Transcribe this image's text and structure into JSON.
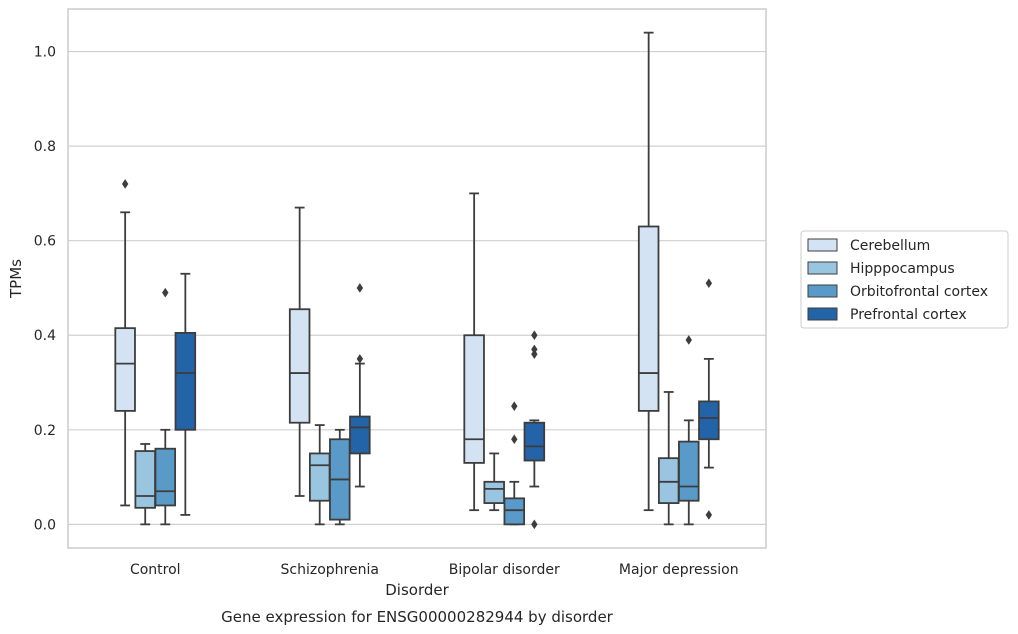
{
  "caption": "Gene expression for ENSG00000282944 by disorder",
  "chart_data": {
    "type": "boxplot",
    "xlabel": "Disorder",
    "ylabel": "TPMs",
    "ylim": [
      -0.05,
      1.09
    ],
    "yticks": [
      0.0,
      0.2,
      0.4,
      0.6,
      0.8,
      1.0
    ],
    "ytick_labels": [
      "0.0",
      "0.2",
      "0.4",
      "0.6",
      "0.8",
      "1.0"
    ],
    "grid": "horizontal",
    "legend_position": "right",
    "categories": [
      "Control",
      "Schizophrenia",
      "Bipolar disorder",
      "Major depression"
    ],
    "series": [
      {
        "name": "Cerebellum",
        "color": "#d3e3f3",
        "boxes": [
          {
            "whislo": 0.04,
            "q1": 0.24,
            "med": 0.34,
            "q3": 0.415,
            "whishi": 0.66,
            "fliers": [
              0.72
            ]
          },
          {
            "whislo": 0.06,
            "q1": 0.215,
            "med": 0.32,
            "q3": 0.455,
            "whishi": 0.67,
            "fliers": []
          },
          {
            "whislo": 0.03,
            "q1": 0.13,
            "med": 0.18,
            "q3": 0.4,
            "whishi": 0.7,
            "fliers": []
          },
          {
            "whislo": 0.03,
            "q1": 0.24,
            "med": 0.32,
            "q3": 0.63,
            "whishi": 1.04,
            "fliers": []
          }
        ]
      },
      {
        "name": "Hipppocampus",
        "color": "#9ac5e0",
        "boxes": [
          {
            "whislo": 0.0,
            "q1": 0.035,
            "med": 0.06,
            "q3": 0.155,
            "whishi": 0.17,
            "fliers": []
          },
          {
            "whislo": 0.0,
            "q1": 0.05,
            "med": 0.125,
            "q3": 0.15,
            "whishi": 0.21,
            "fliers": []
          },
          {
            "whislo": 0.03,
            "q1": 0.045,
            "med": 0.075,
            "q3": 0.09,
            "whishi": 0.15,
            "fliers": []
          },
          {
            "whislo": 0.0,
            "q1": 0.045,
            "med": 0.09,
            "q3": 0.14,
            "whishi": 0.28,
            "fliers": []
          }
        ]
      },
      {
        "name": "Orbitofrontal cortex",
        "color": "#5a9ac8",
        "boxes": [
          {
            "whislo": 0.0,
            "q1": 0.04,
            "med": 0.07,
            "q3": 0.16,
            "whishi": 0.2,
            "fliers": [
              0.49
            ]
          },
          {
            "whislo": 0.0,
            "q1": 0.01,
            "med": 0.095,
            "q3": 0.18,
            "whishi": 0.2,
            "fliers": []
          },
          {
            "whislo": 0.0,
            "q1": 0.0,
            "med": 0.03,
            "q3": 0.055,
            "whishi": 0.09,
            "fliers": [
              0.18,
              0.25
            ]
          },
          {
            "whislo": 0.0,
            "q1": 0.05,
            "med": 0.08,
            "q3": 0.175,
            "whishi": 0.22,
            "fliers": [
              0.39
            ]
          }
        ]
      },
      {
        "name": "Prefrontal cortex",
        "color": "#2363a8",
        "boxes": [
          {
            "whislo": 0.02,
            "q1": 0.2,
            "med": 0.32,
            "q3": 0.405,
            "whishi": 0.53,
            "fliers": []
          },
          {
            "whislo": 0.08,
            "q1": 0.15,
            "med": 0.205,
            "q3": 0.228,
            "whishi": 0.34,
            "fliers": [
              0.35,
              0.5
            ]
          },
          {
            "whislo": 0.08,
            "q1": 0.135,
            "med": 0.165,
            "q3": 0.215,
            "whishi": 0.22,
            "fliers": [
              0.0,
              0.36,
              0.37,
              0.4
            ]
          },
          {
            "whislo": 0.12,
            "q1": 0.18,
            "med": 0.225,
            "q3": 0.26,
            "whishi": 0.35,
            "fliers": [
              0.02,
              0.51
            ]
          }
        ]
      }
    ]
  }
}
